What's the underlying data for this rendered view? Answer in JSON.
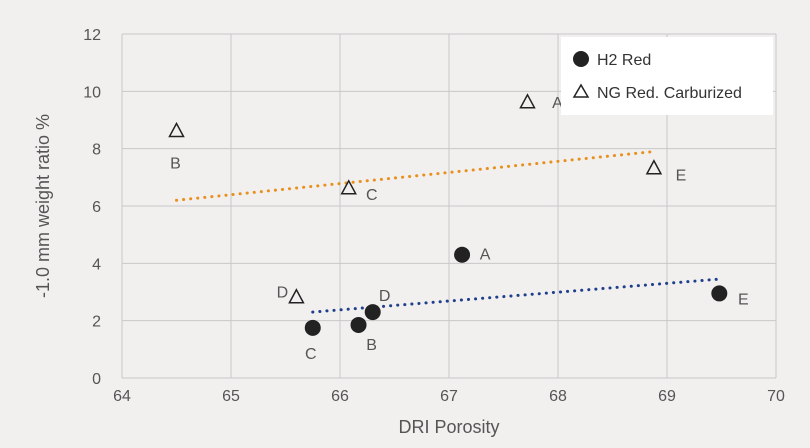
{
  "chart_data": {
    "type": "scatter",
    "title": "",
    "xlabel": "DRI Porosity",
    "ylabel": "-1.0 mm weight ratio  %",
    "xlim": [
      64,
      70
    ],
    "ylim": [
      0,
      12
    ],
    "xticks": [
      "64",
      "65",
      "66",
      "67",
      "68",
      "69",
      "70"
    ],
    "yticks": [
      "0",
      "2",
      "4",
      "6",
      "8",
      "10",
      "12"
    ],
    "grid": true,
    "legend_position": "top-right",
    "series": [
      {
        "name": "H2 Red",
        "marker": "filled-circle",
        "color": "#222222",
        "points": [
          {
            "label": "A",
            "x": 67.12,
            "y": 4.3
          },
          {
            "label": "B",
            "x": 66.17,
            "y": 1.85
          },
          {
            "label": "C",
            "x": 65.75,
            "y": 1.75
          },
          {
            "label": "D",
            "x": 66.3,
            "y": 2.3
          },
          {
            "label": "E",
            "x": 69.48,
            "y": 2.95
          }
        ],
        "trendline": {
          "color": "#1f3f8c",
          "x": [
            65.75,
            69.48
          ],
          "y": [
            2.3,
            3.45
          ]
        }
      },
      {
        "name": "NG Red. Carburized",
        "marker": "hollow-triangle",
        "color": "#222222",
        "points": [
          {
            "label": "A",
            "x": 67.72,
            "y": 9.6
          },
          {
            "label": "B",
            "x": 64.5,
            "y": 8.6
          },
          {
            "label": "C",
            "x": 66.08,
            "y": 6.6
          },
          {
            "label": "D",
            "x": 65.6,
            "y": 2.8
          },
          {
            "label": "E",
            "x": 68.88,
            "y": 7.3
          }
        ],
        "trendline": {
          "color": "#e8901c",
          "x": [
            64.5,
            68.88
          ],
          "y": [
            6.2,
            7.9
          ]
        }
      }
    ]
  }
}
